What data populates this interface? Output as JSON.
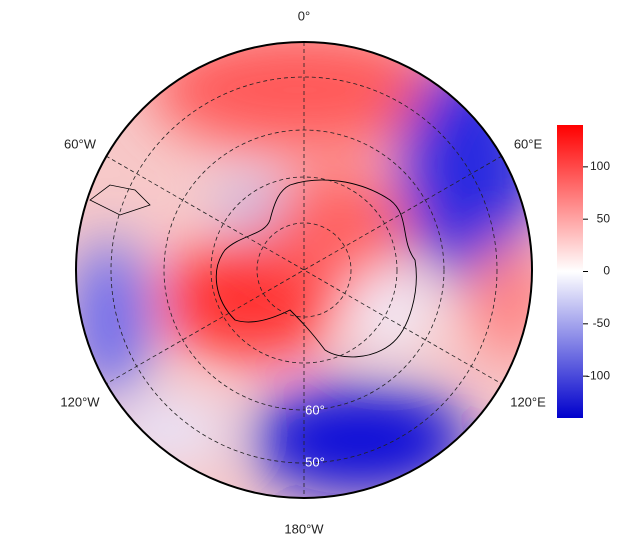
{
  "map": {
    "longitude_labels": [
      "0°",
      "60°E",
      "120°E",
      "180°W",
      "120°W",
      "60°W"
    ],
    "latitude_labels": [
      "60°",
      "50°"
    ]
  },
  "colorbar": {
    "lim": [
      -140,
      140
    ],
    "ticks": [
      100,
      50,
      0,
      -50,
      -100
    ],
    "colors": [
      "#0000cc",
      "#ffffff",
      "#ff0000"
    ]
  }
}
